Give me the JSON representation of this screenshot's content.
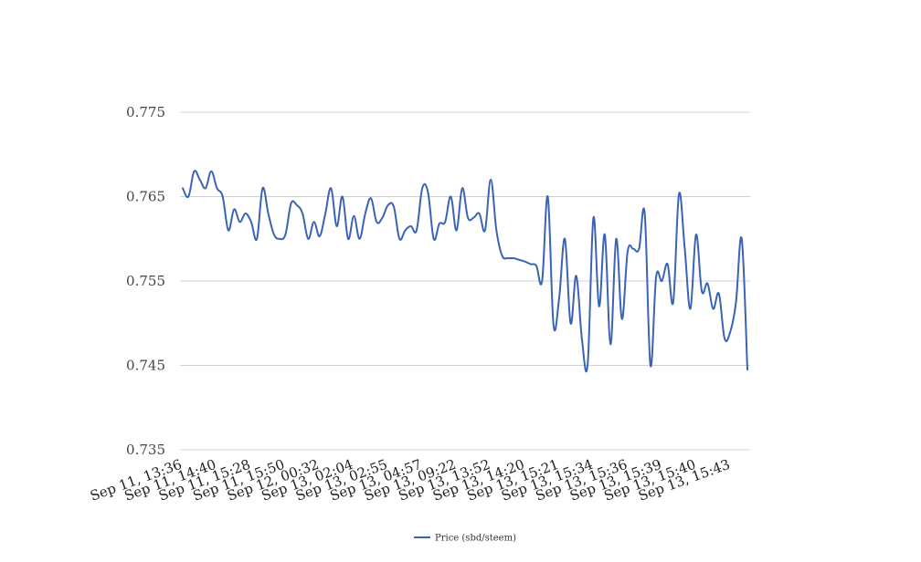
{
  "chart_data": {
    "type": "line",
    "title": "",
    "xlabel": "",
    "ylabel": "",
    "ylim": [
      0.735,
      0.775
    ],
    "yticks": [
      "0.775",
      "0.765",
      "0.755",
      "0.745",
      "0.735"
    ],
    "ytick_values": [
      0.775,
      0.765,
      0.755,
      0.745,
      0.735
    ],
    "xtick_labels": [
      "Sep 11, 13:36",
      "Sep 11, 14:40",
      "Sep 11, 15:28",
      "Sep 11, 15:50",
      "Sep 12, 00:32",
      "Sep 13, 02:04",
      "Sep 13, 02:55",
      "Sep 13, 04:57",
      "Sep 13, 09:22",
      "Sep 13, 13:52",
      "Sep 13, 14:20",
      "Sep 13, 15:21",
      "Sep 13, 15:34",
      "Sep 13, 15:36",
      "Sep 13, 15:39",
      "Sep 13, 15:40",
      "Sep 13, 15:43"
    ],
    "grid": true,
    "legend_position": "bottom",
    "series": [
      {
        "name": "Price (sbd/steem)",
        "color": "#3b63b5",
        "values": [
          0.766,
          0.765,
          0.768,
          0.767,
          0.766,
          0.768,
          0.766,
          0.765,
          0.761,
          0.7635,
          0.762,
          0.763,
          0.762,
          0.76,
          0.766,
          0.763,
          0.7605,
          0.76,
          0.7605,
          0.7642,
          0.764,
          0.763,
          0.76,
          0.762,
          0.7603,
          0.763,
          0.766,
          0.7615,
          0.765,
          0.76,
          0.7627,
          0.76,
          0.763,
          0.7648,
          0.762,
          0.7625,
          0.764,
          0.7638,
          0.76,
          0.761,
          0.7615,
          0.761,
          0.766,
          0.7655,
          0.76,
          0.7618,
          0.762,
          0.765,
          0.761,
          0.766,
          0.7625,
          0.7625,
          0.763,
          0.761,
          0.767,
          0.761,
          0.758,
          0.7577,
          0.7577,
          0.7575,
          0.7573,
          0.757,
          0.7568,
          0.755,
          0.765,
          0.7498,
          0.753,
          0.76,
          0.75,
          0.7556,
          0.748,
          0.7452,
          0.7625,
          0.752,
          0.7605,
          0.7475,
          0.76,
          0.7505,
          0.7585,
          0.7588,
          0.7588,
          0.763,
          0.745,
          0.7555,
          0.755,
          0.757,
          0.7525,
          0.7653,
          0.759,
          0.7517,
          0.7605,
          0.7538,
          0.7547,
          0.7517,
          0.7535,
          0.7482,
          0.749,
          0.7525,
          0.76,
          0.7445
        ]
      }
    ]
  }
}
